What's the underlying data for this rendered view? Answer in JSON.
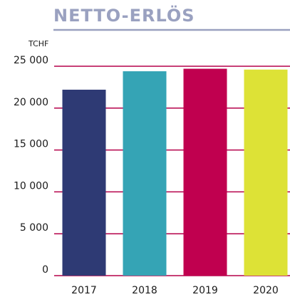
{
  "chart_data": {
    "type": "bar",
    "title": "NETTO-ERLÖS",
    "unit_label": "TCHF",
    "categories": [
      "2017",
      "2018",
      "2019",
      "2020"
    ],
    "values": [
      22200,
      24400,
      24700,
      24600
    ],
    "colors": [
      "#2e3a74",
      "#35a4b5",
      "#c0004f",
      "#dde236"
    ],
    "grid_color": "#b5004a",
    "ylim": [
      0,
      25000
    ],
    "yticks": [
      0,
      {
        "value": 5000,
        "label": "5 000"
      },
      {
        "value": 10000,
        "label": "10 000"
      },
      {
        "value": 15000,
        "label": "15 000"
      },
      {
        "value": 20000,
        "label": "20 000"
      },
      {
        "value": 25000,
        "label": "25 000"
      }
    ],
    "grid": true
  }
}
